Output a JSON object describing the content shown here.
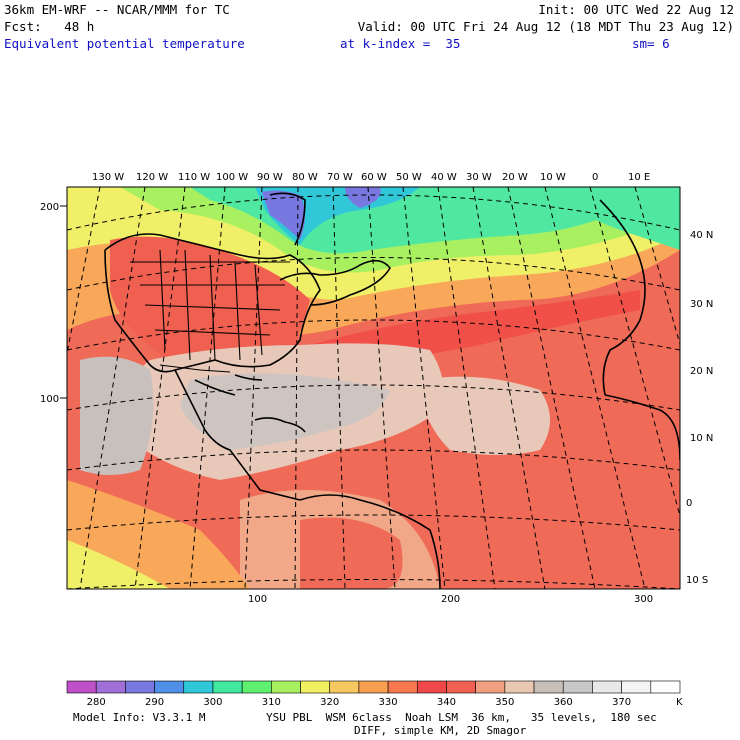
{
  "header": {
    "model_title": "36km EM-WRF -- NCAR/MMM for TC",
    "init": "Init: 00 UTC Wed 22 Aug 12",
    "fcst": "Fcst:   48 h",
    "valid": "Valid: 00 UTC Fri 24 Aug 12 (18 MDT Thu 23 Aug 12)",
    "field": "Equivalent potential temperature",
    "level": "at k-index =  35",
    "smooth": "sm= 6"
  },
  "map": {
    "top_lon_labels": [
      "130 W",
      "120 W",
      "110 W",
      "100 W",
      "90 W",
      "80 W",
      "70 W",
      "60 W",
      "50 W",
      "40 W",
      "30 W",
      "20 W",
      "10 W",
      "0",
      "10 E"
    ],
    "right_lat_labels": [
      "40 N",
      "30 N",
      "20 N",
      "10 N",
      "0",
      "10 S"
    ],
    "left_grid_labels": [
      "200",
      "100"
    ],
    "bottom_grid_labels": [
      "100",
      "200",
      "300"
    ]
  },
  "colorbar": {
    "colors": [
      "#c050c8",
      "#a070d8",
      "#7878e0",
      "#5090e8",
      "#30c8d8",
      "#40e8a0",
      "#60f070",
      "#a8f060",
      "#f0f060",
      "#f8c860",
      "#f8a050",
      "#f87850",
      "#f04848",
      "#f06050",
      "#f0a080",
      "#e8c8b0",
      "#c8c0b8",
      "#c8c8c8",
      "#e8e8e8",
      "#f4f4f4",
      "#ffffff"
    ],
    "labels": [
      "280",
      "290",
      "300",
      "310",
      "320",
      "330",
      "340",
      "350",
      "360",
      "370"
    ],
    "unit": "K"
  },
  "footer": {
    "model_info": "Model Info: V3.3.1 M",
    "physics": "YSU PBL  WSM 6class  Noah LSM  36 km,   35 levels,  180 sec",
    "diff": "DIFF, simple KM, 2D Smagor"
  }
}
